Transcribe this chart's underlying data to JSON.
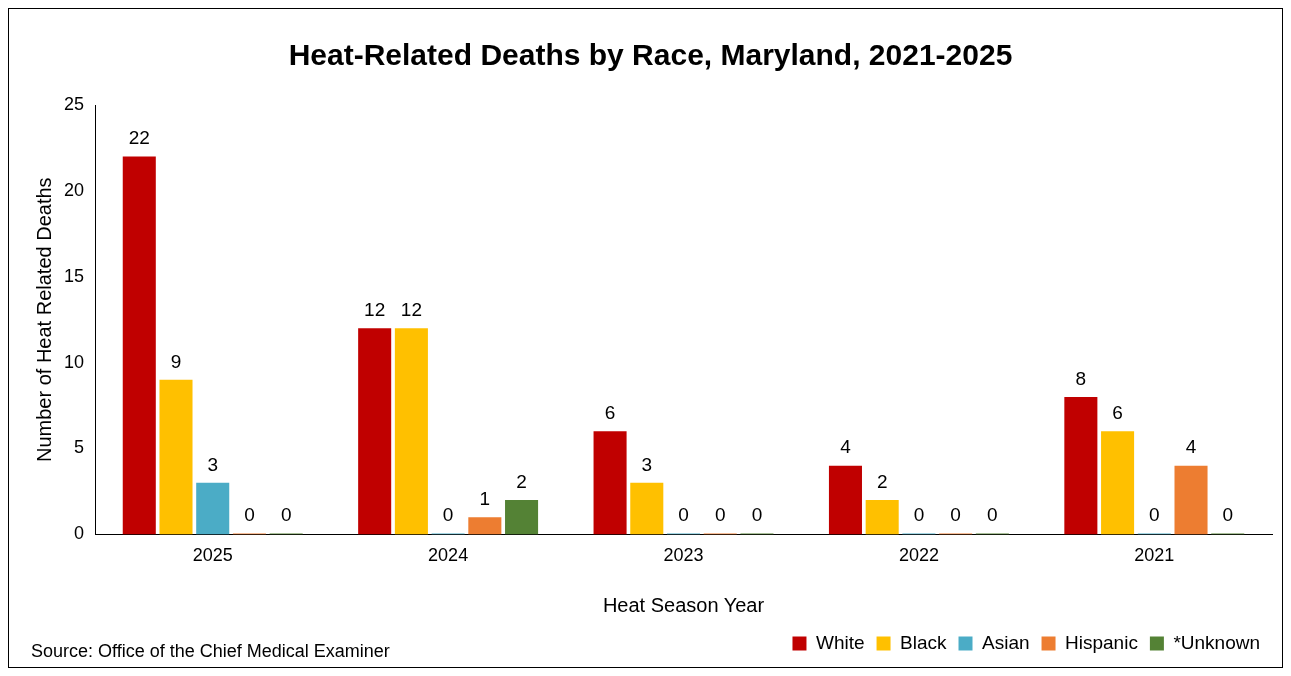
{
  "chart_data": {
    "type": "bar",
    "title": "Heat-Related Deaths by Race, Maryland, 2021-2025",
    "xlabel": "Heat Season Year",
    "ylabel": "Number of Heat Related Deaths",
    "categories": [
      "2025",
      "2024",
      "2023",
      "2022",
      "2021"
    ],
    "series": [
      {
        "name": "White",
        "color": "#c00000",
        "values": [
          22,
          12,
          6,
          4,
          8
        ]
      },
      {
        "name": "Black",
        "color": "#ffc000",
        "values": [
          9,
          12,
          3,
          2,
          6
        ]
      },
      {
        "name": "Asian",
        "color": "#4bacc6",
        "values": [
          3,
          0,
          0,
          0,
          0
        ]
      },
      {
        "name": "Hispanic",
        "color": "#ed7d31",
        "values": [
          0,
          1,
          0,
          0,
          4
        ]
      },
      {
        "name": "*Unknown",
        "color": "#548235",
        "values": [
          0,
          2,
          0,
          0,
          0
        ]
      }
    ],
    "ylim": [
      0,
      25
    ],
    "yticks": [
      0,
      5,
      10,
      15,
      20,
      25
    ],
    "grid": false,
    "legend": "bottom right",
    "data_labels": true,
    "annotations": [
      "Source: Office of the Chief Medical Examiner"
    ]
  }
}
